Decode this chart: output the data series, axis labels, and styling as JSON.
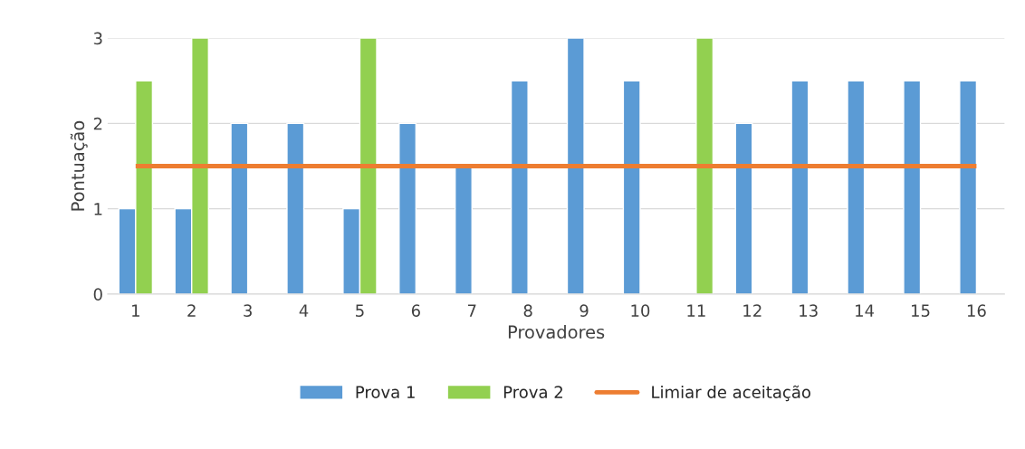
{
  "chart_data": {
    "type": "bar",
    "xlabel": "Provadores",
    "ylabel": "Pontuação",
    "categories": [
      "1",
      "2",
      "3",
      "4",
      "5",
      "6",
      "7",
      "8",
      "9",
      "10",
      "11",
      "12",
      "13",
      "14",
      "15",
      "16"
    ],
    "series": [
      {
        "name": "Prova 1",
        "color": "#5b9bd5",
        "values": [
          1,
          1,
          2,
          2,
          1,
          2,
          1.5,
          2.5,
          3,
          2.5,
          null,
          2,
          2.5,
          2.5,
          2.5,
          2.5
        ]
      },
      {
        "name": "Prova 2",
        "color": "#92d050",
        "values": [
          2.5,
          3,
          null,
          null,
          3,
          null,
          null,
          null,
          null,
          null,
          3,
          null,
          null,
          null,
          null,
          null
        ]
      }
    ],
    "ref_lines": [
      {
        "axis": "y",
        "value": 1.5,
        "label": "Limiar de aceitação",
        "color": "#ed7d31",
        "line_style": "solid"
      }
    ],
    "ylim": [
      0,
      3
    ],
    "yticks": [
      0,
      1,
      2,
      3
    ],
    "grid": "y",
    "legend": "bottom"
  }
}
